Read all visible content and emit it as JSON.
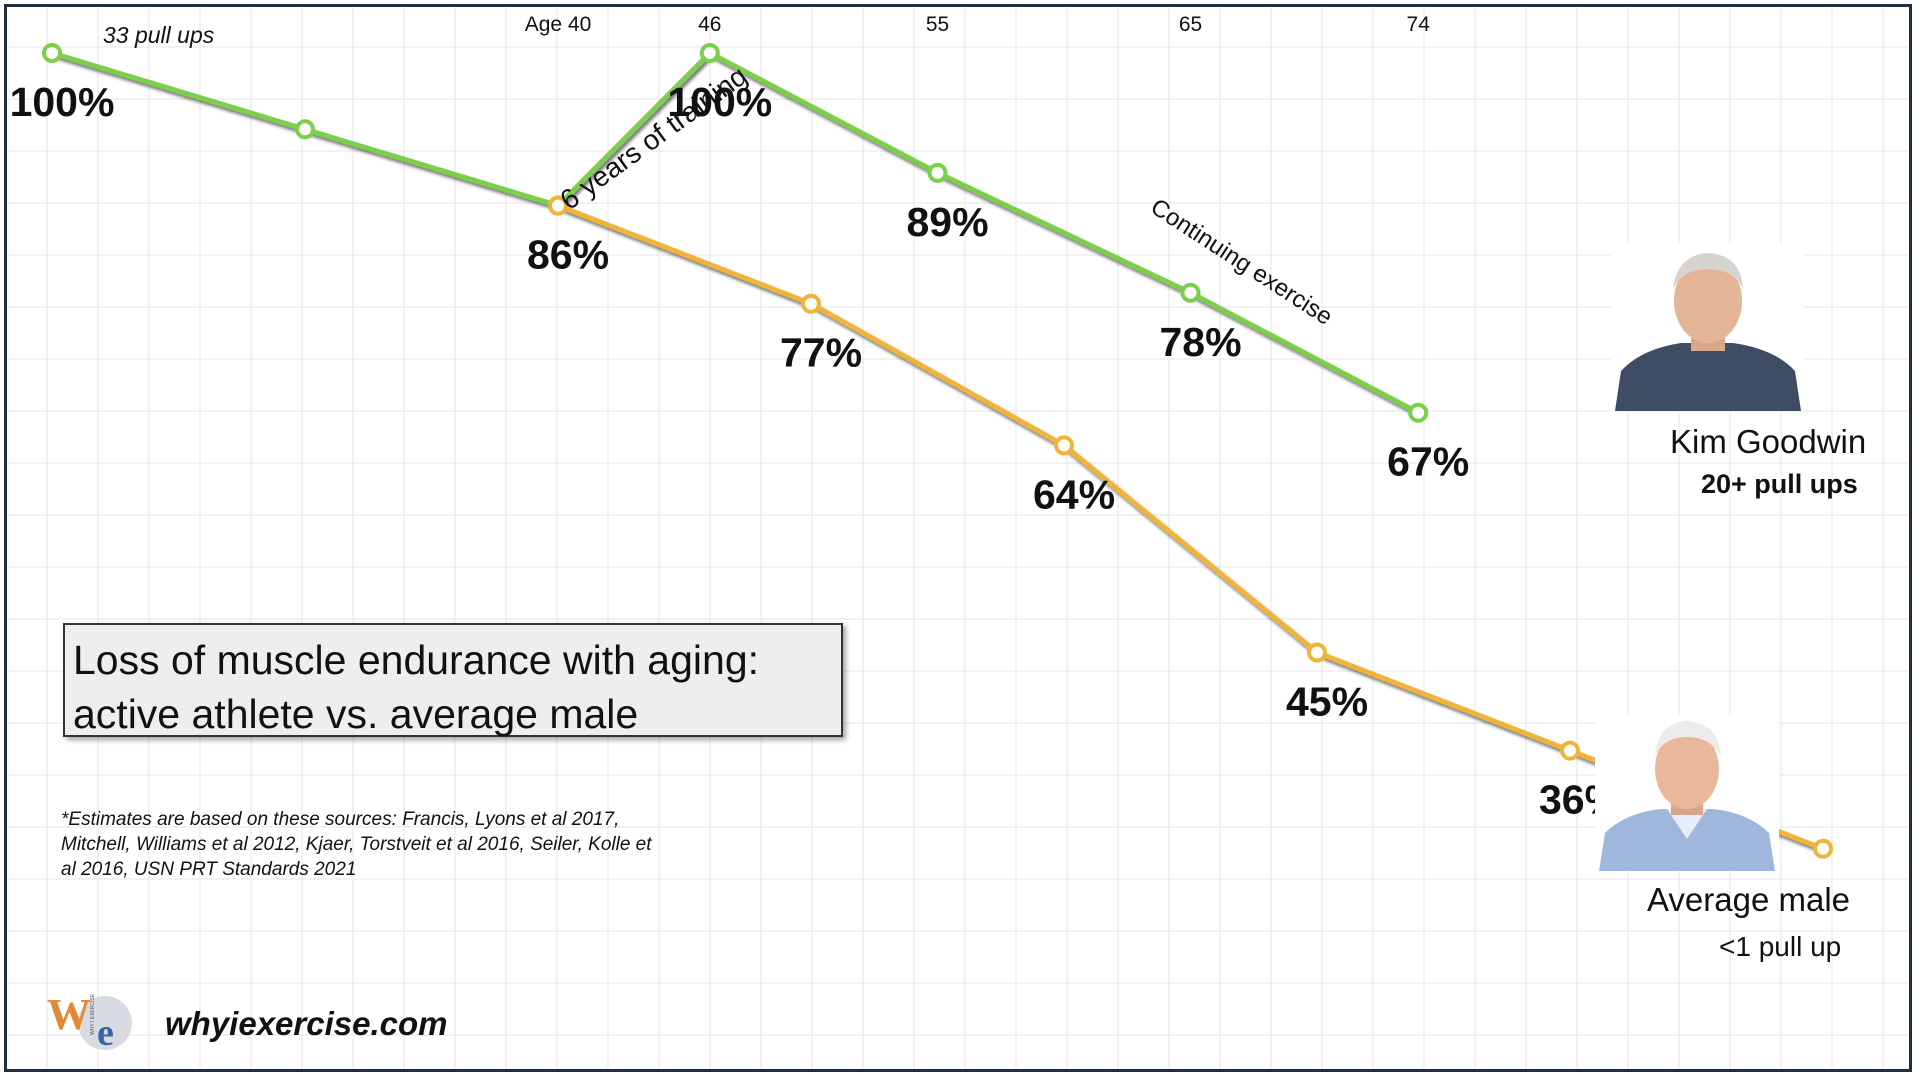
{
  "chart_data": {
    "type": "line",
    "title": "Loss of muscle endurance with aging:",
    "subtitle": "active athlete vs. average male",
    "x_ticks": [
      {
        "x": 40,
        "label": "Age 40"
      },
      {
        "x": 46,
        "label": "46"
      },
      {
        "x": 55,
        "label": "55"
      },
      {
        "x": 65,
        "label": "65"
      },
      {
        "x": 74,
        "label": "74"
      }
    ],
    "series": [
      {
        "name": "Kim Goodwin",
        "color": "#7ccf4a",
        "x": [
          20,
          30,
          40,
          46,
          55,
          65,
          74
        ],
        "y": [
          100,
          93,
          86,
          100,
          89,
          78,
          67
        ],
        "labels": [
          "100%",
          "",
          "86%",
          "100%",
          "89%",
          "78%",
          "67%"
        ]
      },
      {
        "name": "Average male",
        "color": "#f0b43a",
        "x": [
          40,
          50,
          60,
          70,
          80,
          90
        ],
        "y": [
          86,
          77,
          64,
          45,
          36,
          27
        ],
        "labels": [
          "",
          "77%",
          "64%",
          "45%",
          "36%",
          ""
        ]
      }
    ],
    "annotations": [
      "33 pull ups",
      "6 years of training",
      "Continuing exercise"
    ],
    "grid": true
  },
  "people": {
    "athlete_name": "Kim Goodwin",
    "athlete_detail": "20+ pull ups",
    "average_name": "Average male",
    "average_detail": "<1 pull up"
  },
  "footnote": "*Estimates are based on these sources: Francis, Lyons et al 2017, Mitchell, Williams et al 2012,  Kjaer, Torstveit et al 2016, Seiler, Kolle et al 2016, USN PRT Standards 2021",
  "site": "whyiexercise.com",
  "logo": {
    "letters_w": "W",
    "letters_e": "e",
    "vertical_text": "WHY I EXERCISE"
  },
  "colors": {
    "green": "#7ccf4a",
    "orange": "#f0b43a",
    "frame": "#1f2f40"
  }
}
